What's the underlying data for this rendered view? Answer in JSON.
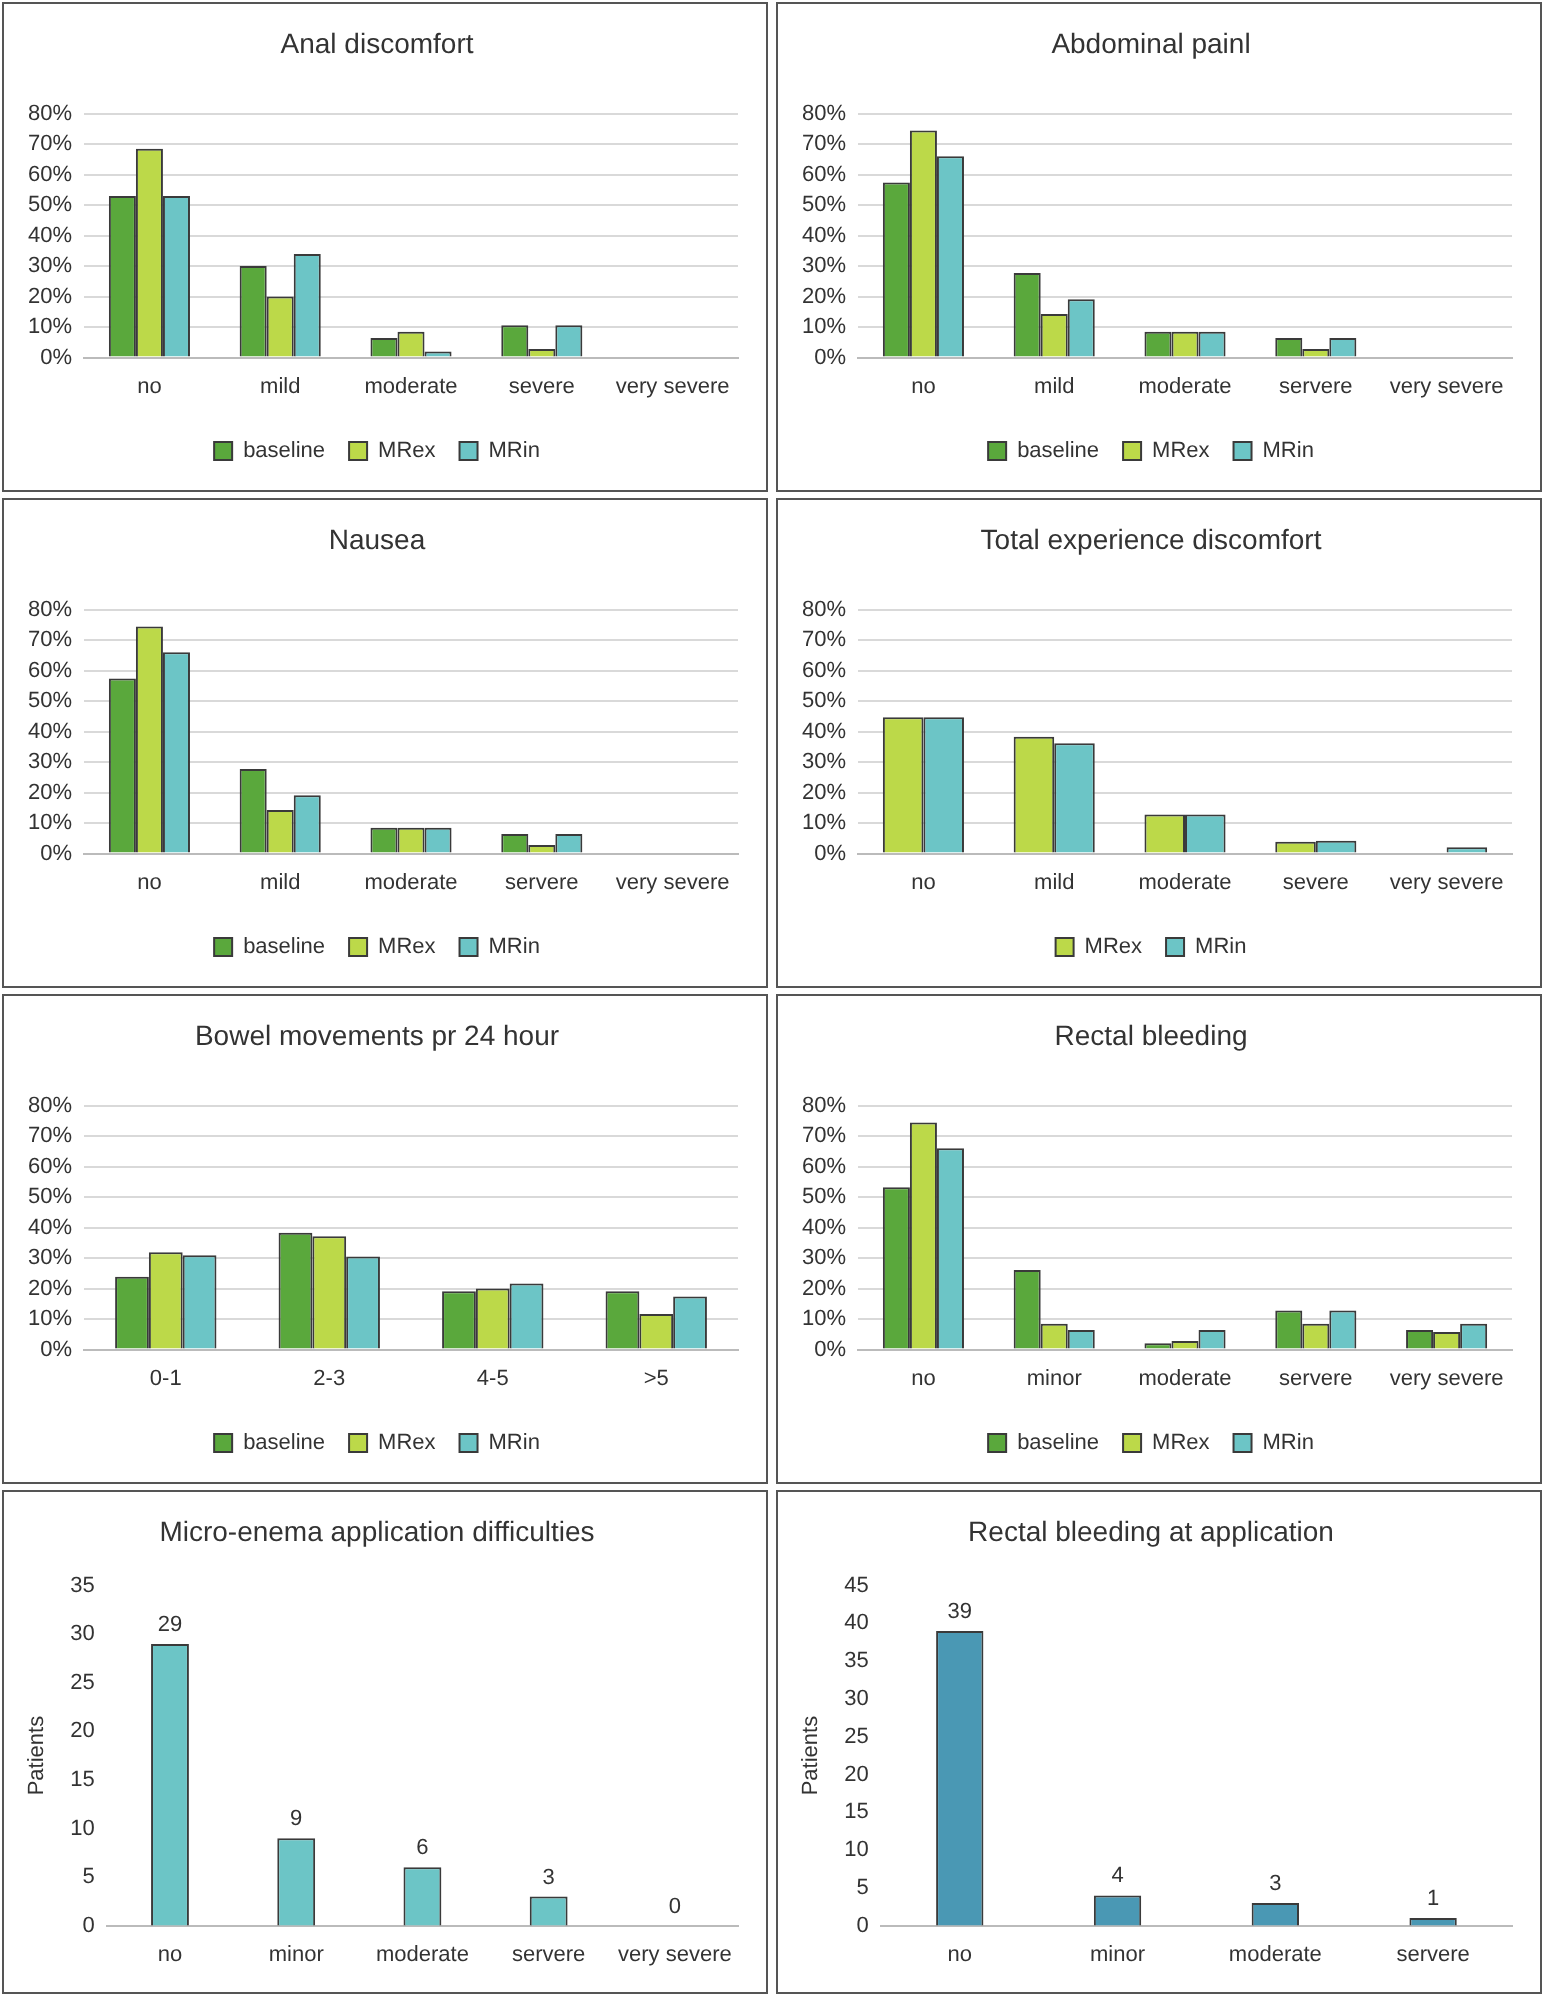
{
  "chart_data": [
    {
      "type": "bar",
      "title": "Anal discomfort",
      "categories": [
        "no",
        "mild",
        "moderate",
        "severe",
        "very severe"
      ],
      "series": [
        {
          "name": "baseline",
          "color": "#5aa83c",
          "values": [
            53,
            30,
            6.4,
            10.6,
            0
          ]
        },
        {
          "name": "MRex",
          "color": "#bcd949",
          "values": [
            68.5,
            20,
            8.5,
            2.8,
            0
          ]
        },
        {
          "name": "MRin",
          "color": "#6cc5c6",
          "values": [
            53,
            34,
            2,
            10.6,
            0
          ]
        }
      ],
      "ylim": [
        0,
        80
      ],
      "yticks": [
        {
          "value": 0,
          "label": "0%"
        },
        {
          "value": 10,
          "label": "10%"
        },
        {
          "value": 20,
          "label": "20%"
        },
        {
          "value": 30,
          "label": "30%"
        },
        {
          "value": 40,
          "label": "40%"
        },
        {
          "value": 50,
          "label": "50%"
        },
        {
          "value": 60,
          "label": "60%"
        },
        {
          "value": 70,
          "label": "70%"
        },
        {
          "value": 80,
          "label": "80%"
        }
      ],
      "grid": "y",
      "legend": "bottom"
    },
    {
      "type": "bar",
      "title": "Abdominal painl",
      "categories": [
        "no",
        "mild",
        "moderate",
        "servere",
        "very severe"
      ],
      "series": [
        {
          "name": "baseline",
          "color": "#5aa83c",
          "values": [
            57.4,
            27.7,
            8.5,
            6.4,
            0
          ]
        },
        {
          "name": "MRex",
          "color": "#bcd949",
          "values": [
            74.5,
            14.3,
            8.5,
            2.8,
            0
          ]
        },
        {
          "name": "MRin",
          "color": "#6cc5c6",
          "values": [
            66,
            19.1,
            8.5,
            6.4,
            0
          ]
        }
      ],
      "ylim": [
        0,
        80
      ],
      "yticks": [
        {
          "value": 0,
          "label": "0%"
        },
        {
          "value": 10,
          "label": "10%"
        },
        {
          "value": 20,
          "label": "20%"
        },
        {
          "value": 30,
          "label": "30%"
        },
        {
          "value": 40,
          "label": "40%"
        },
        {
          "value": 50,
          "label": "50%"
        },
        {
          "value": 60,
          "label": "60%"
        },
        {
          "value": 70,
          "label": "70%"
        },
        {
          "value": 80,
          "label": "80%"
        }
      ],
      "grid": "y",
      "legend": "bottom"
    },
    {
      "type": "bar",
      "title": "Nausea",
      "categories": [
        "no",
        "mild",
        "moderate",
        "servere",
        "very severe"
      ],
      "series": [
        {
          "name": "baseline",
          "color": "#5aa83c",
          "values": [
            57.4,
            27.7,
            8.5,
            6.4,
            0
          ]
        },
        {
          "name": "MRex",
          "color": "#bcd949",
          "values": [
            74.5,
            14.3,
            8.5,
            2.8,
            0
          ]
        },
        {
          "name": "MRin",
          "color": "#6cc5c6",
          "values": [
            66,
            19.1,
            8.5,
            6.4,
            0
          ]
        }
      ],
      "ylim": [
        0,
        80
      ],
      "yticks": [
        {
          "value": 0,
          "label": "0%"
        },
        {
          "value": 10,
          "label": "10%"
        },
        {
          "value": 20,
          "label": "20%"
        },
        {
          "value": 30,
          "label": "30%"
        },
        {
          "value": 40,
          "label": "40%"
        },
        {
          "value": 50,
          "label": "50%"
        },
        {
          "value": 60,
          "label": "60%"
        },
        {
          "value": 70,
          "label": "70%"
        },
        {
          "value": 80,
          "label": "80%"
        }
      ],
      "grid": "y",
      "legend": "bottom"
    },
    {
      "type": "bar",
      "title": "Total experience discomfort",
      "categories": [
        "no",
        "mild",
        "moderate",
        "severe",
        "very severe"
      ],
      "series": [
        {
          "name": "MRex",
          "color": "#bcd949",
          "values": [
            44.7,
            38.3,
            12.8,
            3.9,
            0
          ]
        },
        {
          "name": "MRin",
          "color": "#6cc5c6",
          "values": [
            44.7,
            36.2,
            12.8,
            4.2,
            2.1
          ]
        }
      ],
      "ylim": [
        0,
        80
      ],
      "yticks": [
        {
          "value": 0,
          "label": "0%"
        },
        {
          "value": 10,
          "label": "10%"
        },
        {
          "value": 20,
          "label": "20%"
        },
        {
          "value": 30,
          "label": "30%"
        },
        {
          "value": 40,
          "label": "40%"
        },
        {
          "value": 50,
          "label": "50%"
        },
        {
          "value": 60,
          "label": "60%"
        },
        {
          "value": 70,
          "label": "70%"
        },
        {
          "value": 80,
          "label": "80%"
        }
      ],
      "grid": "y",
      "legend": "bottom"
    },
    {
      "type": "bar",
      "title": "Bowel movements pr 24 hour",
      "categories": [
        "0-1",
        "2-3",
        "4-5",
        ">5"
      ],
      "series": [
        {
          "name": "baseline",
          "color": "#5aa83c",
          "values": [
            23.9,
            38.3,
            19.1,
            19.1
          ]
        },
        {
          "name": "MRex",
          "color": "#bcd949",
          "values": [
            31.9,
            37.2,
            20,
            11.7
          ]
        },
        {
          "name": "MRin",
          "color": "#6cc5c6",
          "values": [
            30.9,
            30.5,
            21.7,
            17.4
          ]
        }
      ],
      "ylim": [
        0,
        80
      ],
      "yticks": [
        {
          "value": 0,
          "label": "0%"
        },
        {
          "value": 10,
          "label": "10%"
        },
        {
          "value": 20,
          "label": "20%"
        },
        {
          "value": 30,
          "label": "30%"
        },
        {
          "value": 40,
          "label": "40%"
        },
        {
          "value": 50,
          "label": "50%"
        },
        {
          "value": 60,
          "label": "60%"
        },
        {
          "value": 70,
          "label": "70%"
        },
        {
          "value": 80,
          "label": "80%"
        }
      ],
      "grid": "y",
      "legend": "bottom"
    },
    {
      "type": "bar",
      "title": "Rectal bleeding",
      "categories": [
        "no",
        "minor",
        "moderate",
        "servere",
        "very severe"
      ],
      "series": [
        {
          "name": "baseline",
          "color": "#5aa83c",
          "values": [
            53.2,
            26.1,
            2.1,
            12.8,
            6.4
          ]
        },
        {
          "name": "MRex",
          "color": "#bcd949",
          "values": [
            74.5,
            8.5,
            2.8,
            8.5,
            5.8
          ]
        },
        {
          "name": "MRin",
          "color": "#6cc5c6",
          "values": [
            66,
            6.4,
            6.4,
            12.8,
            8.5
          ]
        }
      ],
      "ylim": [
        0,
        80
      ],
      "yticks": [
        {
          "value": 0,
          "label": "0%"
        },
        {
          "value": 10,
          "label": "10%"
        },
        {
          "value": 20,
          "label": "20%"
        },
        {
          "value": 30,
          "label": "30%"
        },
        {
          "value": 40,
          "label": "40%"
        },
        {
          "value": 50,
          "label": "50%"
        },
        {
          "value": 60,
          "label": "60%"
        },
        {
          "value": 70,
          "label": "70%"
        },
        {
          "value": 80,
          "label": "80%"
        }
      ],
      "grid": "y",
      "legend": "bottom"
    },
    {
      "type": "bar",
      "title": "Micro-enema application difficulties",
      "categories": [
        "no",
        "minor",
        "moderate",
        "servere",
        "very severe"
      ],
      "values": [
        29,
        9,
        6,
        3,
        0
      ],
      "color": "#6cc5c6",
      "ylabel": "Patients",
      "ylim": [
        0,
        35
      ],
      "yticks": [
        0,
        5,
        10,
        15,
        20,
        25,
        30,
        35
      ],
      "data_labels": true
    },
    {
      "type": "bar",
      "title": "Rectal bleeding at application",
      "categories": [
        "no",
        "minor",
        "moderate",
        "servere"
      ],
      "values": [
        39,
        4,
        3,
        1
      ],
      "color": "#4a98b4",
      "ylabel": "Patients",
      "ylim": [
        0,
        45
      ],
      "yticks": [
        0,
        5,
        10,
        15,
        20,
        25,
        30,
        35,
        40,
        45
      ],
      "data_labels": true
    }
  ]
}
